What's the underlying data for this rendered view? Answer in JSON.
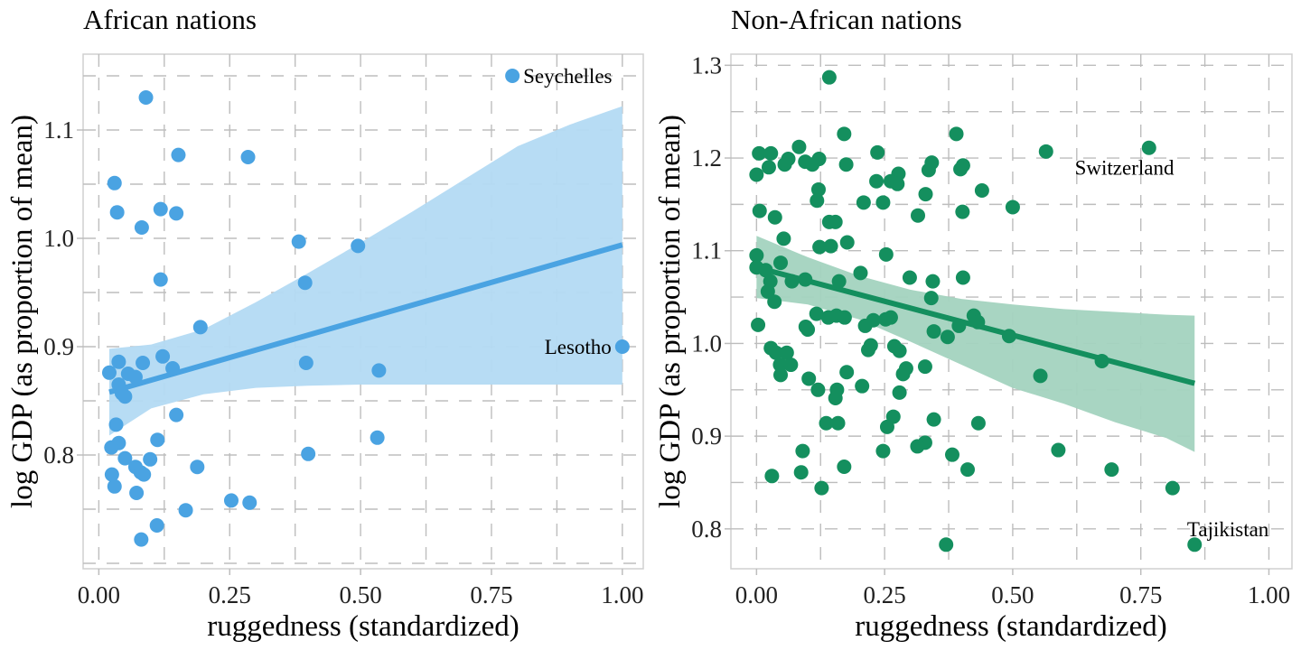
{
  "chart_data": [
    {
      "type": "scatter",
      "title": "African nations",
      "xlabel": "ruggedness (standardized)",
      "ylabel": "log GDP (as proportion of mean)",
      "xlim": [
        -0.03,
        1.04
      ],
      "ylim": [
        0.695,
        1.17
      ],
      "xticks": [
        0.0,
        0.25,
        0.5,
        0.75,
        1.0
      ],
      "xtick_labels": [
        "0.00",
        "0.25",
        "0.50",
        "0.75",
        "1.00"
      ],
      "yticks": [
        0.8,
        0.9,
        1.0,
        1.1
      ],
      "ytick_labels": [
        "0.8",
        "0.9",
        "1.0",
        "1.1"
      ],
      "grid": true,
      "color": "#4aa3e2",
      "ribbon_color": "#b3daf3",
      "points": [
        {
          "x": 0.09,
          "y": 1.13
        },
        {
          "x": 0.152,
          "y": 1.077
        },
        {
          "x": 0.285,
          "y": 1.075
        },
        {
          "x": 0.03,
          "y": 1.051
        },
        {
          "x": 0.035,
          "y": 1.024
        },
        {
          "x": 0.118,
          "y": 1.027
        },
        {
          "x": 0.148,
          "y": 1.023
        },
        {
          "x": 0.082,
          "y": 1.01
        },
        {
          "x": 0.382,
          "y": 0.997
        },
        {
          "x": 0.495,
          "y": 0.993
        },
        {
          "x": 0.118,
          "y": 0.962
        },
        {
          "x": 0.394,
          "y": 0.959
        },
        {
          "x": 0.194,
          "y": 0.918
        },
        {
          "x": 0.122,
          "y": 0.891
        },
        {
          "x": 0.038,
          "y": 0.886
        },
        {
          "x": 0.084,
          "y": 0.885
        },
        {
          "x": 0.396,
          "y": 0.885
        },
        {
          "x": 0.141,
          "y": 0.88
        },
        {
          "x": 0.02,
          "y": 0.876
        },
        {
          "x": 0.056,
          "y": 0.875
        },
        {
          "x": 0.07,
          "y": 0.872
        },
        {
          "x": 0.535,
          "y": 0.878
        },
        {
          "x": 0.038,
          "y": 0.865
        },
        {
          "x": 0.044,
          "y": 0.857
        },
        {
          "x": 0.05,
          "y": 0.854
        },
        {
          "x": 0.148,
          "y": 0.837
        },
        {
          "x": 0.033,
          "y": 0.828
        },
        {
          "x": 0.532,
          "y": 0.816
        },
        {
          "x": 0.112,
          "y": 0.814
        },
        {
          "x": 0.038,
          "y": 0.811
        },
        {
          "x": 0.024,
          "y": 0.807
        },
        {
          "x": 0.4,
          "y": 0.801
        },
        {
          "x": 0.05,
          "y": 0.797
        },
        {
          "x": 0.098,
          "y": 0.796
        },
        {
          "x": 0.07,
          "y": 0.789
        },
        {
          "x": 0.188,
          "y": 0.789
        },
        {
          "x": 0.08,
          "y": 0.784
        },
        {
          "x": 0.086,
          "y": 0.782
        },
        {
          "x": 0.025,
          "y": 0.782
        },
        {
          "x": 0.03,
          "y": 0.771
        },
        {
          "x": 0.072,
          "y": 0.765
        },
        {
          "x": 0.253,
          "y": 0.758
        },
        {
          "x": 0.288,
          "y": 0.756
        },
        {
          "x": 0.166,
          "y": 0.749
        },
        {
          "x": 0.111,
          "y": 0.735
        },
        {
          "x": 0.081,
          "y": 0.722
        },
        {
          "x": 0.79,
          "y": 1.15,
          "label": "Seychelles"
        },
        {
          "x": 1.0,
          "y": 0.9,
          "label": "Lesotho"
        }
      ],
      "fit_line": {
        "x": [
          0.02,
          1.0
        ],
        "y": [
          0.858,
          0.994
        ]
      },
      "ribbon": {
        "x": [
          0.02,
          0.1,
          0.2,
          0.3,
          0.4,
          0.5,
          0.6,
          0.7,
          0.8,
          0.9,
          1.0
        ],
        "lower": [
          0.818,
          0.843,
          0.856,
          0.862,
          0.864,
          0.865,
          0.865,
          0.865,
          0.865,
          0.865,
          0.865
        ],
        "upper": [
          0.898,
          0.902,
          0.916,
          0.941,
          0.968,
          0.996,
          1.025,
          1.055,
          1.085,
          1.105,
          1.122
        ]
      },
      "annotations": [
        {
          "text": "Seychelles",
          "x": 0.79,
          "y": 1.15,
          "side": "right"
        },
        {
          "text": "Lesotho",
          "x": 1.0,
          "y": 0.9,
          "side": "left"
        }
      ]
    },
    {
      "type": "scatter",
      "title": "Non-African nations",
      "xlabel": "ruggedness (standardized)",
      "ylabel": "log GDP (as proportion of mean)",
      "xlim": [
        -0.05,
        1.045
      ],
      "ylim": [
        0.757,
        1.312
      ],
      "xticks": [
        0.0,
        0.25,
        0.5,
        0.75,
        1.0
      ],
      "xtick_labels": [
        "0.00",
        "0.25",
        "0.50",
        "0.75",
        "1.00"
      ],
      "yticks": [
        0.8,
        0.9,
        1.0,
        1.1,
        1.2,
        1.3
      ],
      "ytick_labels": [
        "0.8",
        "0.9",
        "1.0",
        "1.1",
        "1.2",
        "1.3"
      ],
      "grid": true,
      "color": "#148f5e",
      "ribbon_color": "#a3d3bf",
      "points": [
        {
          "x": 0.142,
          "y": 1.287
        },
        {
          "x": 0.171,
          "y": 1.226
        },
        {
          "x": 0.39,
          "y": 1.226
        },
        {
          "x": 0.083,
          "y": 1.212
        },
        {
          "x": 0.565,
          "y": 1.207
        },
        {
          "x": 0.236,
          "y": 1.206
        },
        {
          "x": 0.005,
          "y": 1.205
        },
        {
          "x": 0.028,
          "y": 1.205
        },
        {
          "x": 0.062,
          "y": 1.199
        },
        {
          "x": 0.122,
          "y": 1.199
        },
        {
          "x": 0.095,
          "y": 1.196
        },
        {
          "x": 0.109,
          "y": 1.193
        },
        {
          "x": 0.055,
          "y": 1.193
        },
        {
          "x": 0.024,
          "y": 1.19
        },
        {
          "x": 0.175,
          "y": 1.193
        },
        {
          "x": 0.342,
          "y": 1.195
        },
        {
          "x": 0.403,
          "y": 1.192
        },
        {
          "x": 0.336,
          "y": 1.187
        },
        {
          "x": 0.398,
          "y": 1.188
        },
        {
          "x": 0.0,
          "y": 1.182
        },
        {
          "x": 0.277,
          "y": 1.183
        },
        {
          "x": 0.234,
          "y": 1.175
        },
        {
          "x": 0.262,
          "y": 1.175
        },
        {
          "x": 0.275,
          "y": 1.172
        },
        {
          "x": 0.121,
          "y": 1.166
        },
        {
          "x": 0.44,
          "y": 1.165
        },
        {
          "x": 0.33,
          "y": 1.161
        },
        {
          "x": 0.118,
          "y": 1.154
        },
        {
          "x": 0.209,
          "y": 1.152
        },
        {
          "x": 0.247,
          "y": 1.152
        },
        {
          "x": 0.5,
          "y": 1.147
        },
        {
          "x": 0.006,
          "y": 1.143
        },
        {
          "x": 0.402,
          "y": 1.142
        },
        {
          "x": 0.036,
          "y": 1.136
        },
        {
          "x": 0.315,
          "y": 1.138
        },
        {
          "x": 0.142,
          "y": 1.131
        },
        {
          "x": 0.154,
          "y": 1.131
        },
        {
          "x": 0.053,
          "y": 1.113
        },
        {
          "x": 0.177,
          "y": 1.109
        },
        {
          "x": 0.123,
          "y": 1.104
        },
        {
          "x": 0.145,
          "y": 1.105
        },
        {
          "x": 0.253,
          "y": 1.096
        },
        {
          "x": 0.0,
          "y": 1.095
        },
        {
          "x": 0.047,
          "y": 1.087
        },
        {
          "x": 0.0,
          "y": 1.082
        },
        {
          "x": 0.018,
          "y": 1.079
        },
        {
          "x": 0.203,
          "y": 1.076
        },
        {
          "x": 0.299,
          "y": 1.071
        },
        {
          "x": 0.027,
          "y": 1.067
        },
        {
          "x": 0.069,
          "y": 1.067
        },
        {
          "x": 0.095,
          "y": 1.069
        },
        {
          "x": 0.161,
          "y": 1.067
        },
        {
          "x": 0.344,
          "y": 1.067
        },
        {
          "x": 0.403,
          "y": 1.071
        },
        {
          "x": 0.022,
          "y": 1.056
        },
        {
          "x": 0.341,
          "y": 1.049
        },
        {
          "x": 0.035,
          "y": 1.045
        },
        {
          "x": 0.117,
          "y": 1.032
        },
        {
          "x": 0.14,
          "y": 1.028
        },
        {
          "x": 0.156,
          "y": 1.03
        },
        {
          "x": 0.172,
          "y": 1.028
        },
        {
          "x": 0.228,
          "y": 1.025
        },
        {
          "x": 0.252,
          "y": 1.026
        },
        {
          "x": 0.262,
          "y": 1.028
        },
        {
          "x": 0.003,
          "y": 1.02
        },
        {
          "x": 0.096,
          "y": 1.018
        },
        {
          "x": 0.1,
          "y": 1.015
        },
        {
          "x": 0.212,
          "y": 1.019
        },
        {
          "x": 0.346,
          "y": 1.013
        },
        {
          "x": 0.373,
          "y": 1.007
        },
        {
          "x": 0.395,
          "y": 1.019
        },
        {
          "x": 0.424,
          "y": 1.03
        },
        {
          "x": 0.432,
          "y": 1.023
        },
        {
          "x": 0.493,
          "y": 1.008
        },
        {
          "x": 0.028,
          "y": 0.995
        },
        {
          "x": 0.038,
          "y": 0.99
        },
        {
          "x": 0.059,
          "y": 0.99
        },
        {
          "x": 0.218,
          "y": 0.993
        },
        {
          "x": 0.223,
          "y": 0.998
        },
        {
          "x": 0.269,
          "y": 0.997
        },
        {
          "x": 0.279,
          "y": 0.992
        },
        {
          "x": 0.046,
          "y": 0.977
        },
        {
          "x": 0.067,
          "y": 0.977
        },
        {
          "x": 0.292,
          "y": 0.973
        },
        {
          "x": 0.286,
          "y": 0.967
        },
        {
          "x": 0.329,
          "y": 0.975
        },
        {
          "x": 0.047,
          "y": 0.966
        },
        {
          "x": 0.102,
          "y": 0.962
        },
        {
          "x": 0.176,
          "y": 0.969
        },
        {
          "x": 0.554,
          "y": 0.965
        },
        {
          "x": 0.674,
          "y": 0.981
        },
        {
          "x": 0.12,
          "y": 0.95
        },
        {
          "x": 0.157,
          "y": 0.95
        },
        {
          "x": 0.206,
          "y": 0.954
        },
        {
          "x": 0.279,
          "y": 0.947
        },
        {
          "x": 0.154,
          "y": 0.941
        },
        {
          "x": 0.267,
          "y": 0.921
        },
        {
          "x": 0.346,
          "y": 0.918
        },
        {
          "x": 0.433,
          "y": 0.914
        },
        {
          "x": 0.136,
          "y": 0.914
        },
        {
          "x": 0.159,
          "y": 0.914
        },
        {
          "x": 0.255,
          "y": 0.91
        },
        {
          "x": 0.329,
          "y": 0.893
        },
        {
          "x": 0.314,
          "y": 0.889
        },
        {
          "x": 0.09,
          "y": 0.884
        },
        {
          "x": 0.247,
          "y": 0.884
        },
        {
          "x": 0.382,
          "y": 0.88
        },
        {
          "x": 0.589,
          "y": 0.885
        },
        {
          "x": 0.171,
          "y": 0.867
        },
        {
          "x": 0.412,
          "y": 0.864
        },
        {
          "x": 0.087,
          "y": 0.861
        },
        {
          "x": 0.03,
          "y": 0.857
        },
        {
          "x": 0.693,
          "y": 0.864
        },
        {
          "x": 0.127,
          "y": 0.844
        },
        {
          "x": 0.812,
          "y": 0.844
        },
        {
          "x": 0.37,
          "y": 0.783
        },
        {
          "x": 0.766,
          "y": 1.211,
          "label": "Switzerland"
        },
        {
          "x": 0.855,
          "y": 0.783,
          "label": "Tajikistan"
        }
      ],
      "fit_line": {
        "x": [
          0.0,
          0.855
        ],
        "y": [
          1.082,
          0.957
        ]
      },
      "ribbon": {
        "x": [
          0.0,
          0.1,
          0.2,
          0.3,
          0.4,
          0.5,
          0.6,
          0.7,
          0.8,
          0.855
        ],
        "lower": [
          1.049,
          1.042,
          1.026,
          1.002,
          0.977,
          0.952,
          0.935,
          0.915,
          0.898,
          0.883
        ],
        "upper": [
          1.116,
          1.093,
          1.073,
          1.058,
          1.048,
          1.042,
          1.037,
          1.034,
          1.031,
          1.03
        ]
      },
      "annotations": [
        {
          "text": "Switzerland",
          "x": 0.6,
          "y": 1.19,
          "side": "right"
        },
        {
          "text": "Tajikistan",
          "x": 0.92,
          "y": 0.8,
          "side": "center"
        }
      ]
    }
  ]
}
